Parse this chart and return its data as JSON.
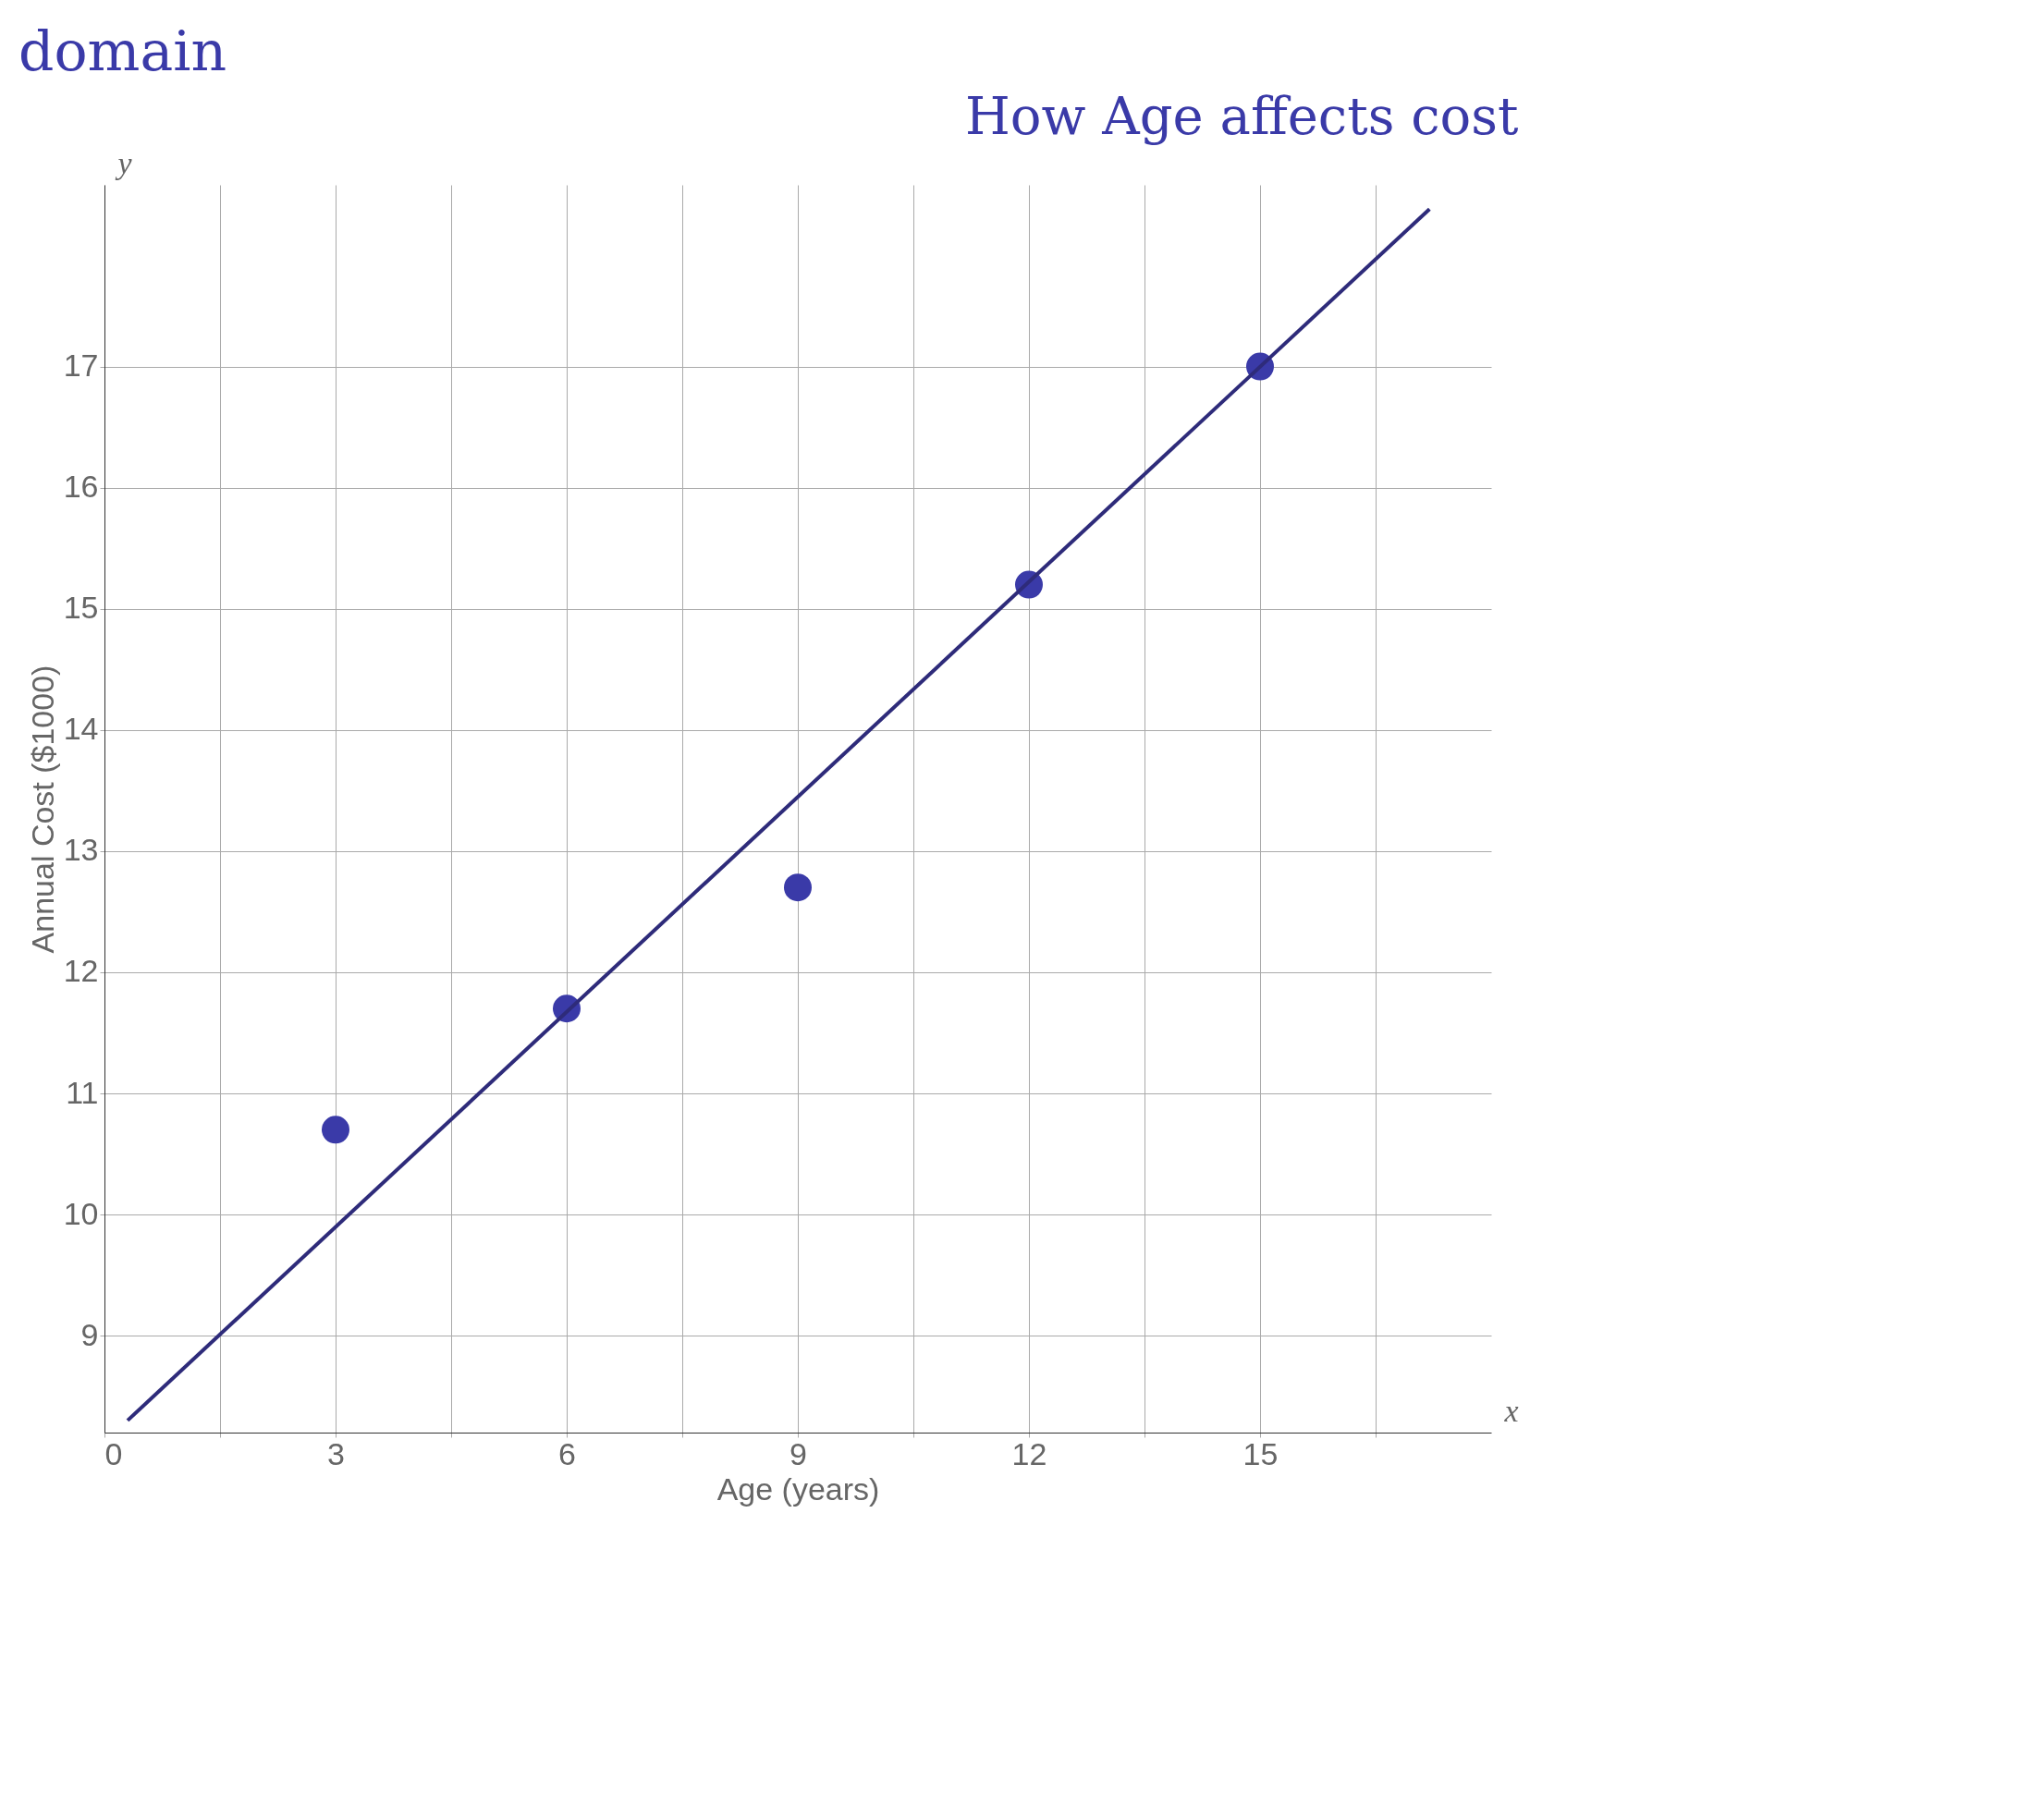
{
  "chart_data": {
    "type": "scatter",
    "title": "How Age affects cost",
    "xlabel": "Age (years)",
    "ylabel": "Annual Cost ($1000)",
    "annotations": [
      "domain",
      "y",
      "x"
    ],
    "xlim": [
      0,
      18
    ],
    "ylim": [
      8.2,
      18.5
    ],
    "xticks": [
      0,
      {
        "value": 1.5,
        "label": null
      },
      3,
      {
        "value": 4.5,
        "label": null
      },
      6,
      {
        "value": 7.5,
        "label": null
      },
      9,
      {
        "value": 10.5,
        "label": null
      },
      12,
      {
        "value": 13.5,
        "label": null
      },
      15,
      {
        "value": 16.5,
        "label": null
      }
    ],
    "yticks": [
      9,
      10,
      11,
      12,
      13,
      14,
      15,
      16,
      17
    ],
    "grid": true,
    "series": [
      {
        "color": "#3a3aa8",
        "x": [
          3,
          6,
          9,
          12,
          15
        ],
        "values": [
          10.7,
          11.7,
          12.7,
          15.2,
          17.0
        ]
      },
      {
        "type": "line",
        "color": "#2e2b7a",
        "x": [
          0.3,
          17.2
        ],
        "values": [
          8.3,
          18.3
        ]
      }
    ]
  }
}
